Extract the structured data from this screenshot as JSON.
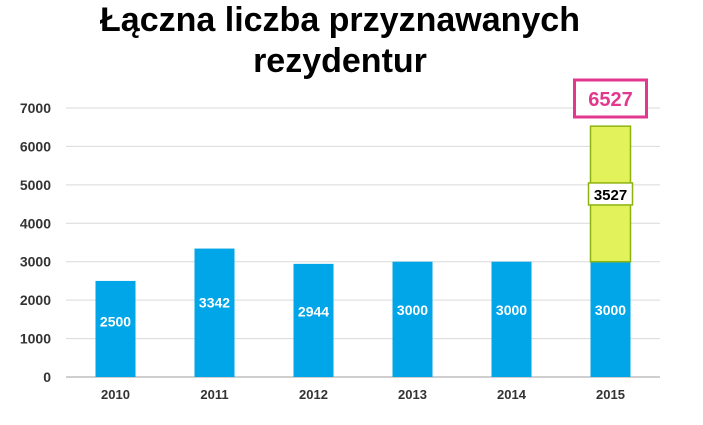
{
  "title": "Łączna liczba przyznawanych rezydentur",
  "colors": {
    "base": "#00A6E8",
    "extra": "#E2F25A",
    "extra_border": "#8DB312",
    "total_border": "#E2388E",
    "total_text": "#E2388E",
    "grid": "#D9D9D9"
  },
  "chart_data": {
    "type": "bar",
    "stacked": true,
    "categories": [
      "2010",
      "2011",
      "2012",
      "2013",
      "2014",
      "2015"
    ],
    "series": [
      {
        "values": [
          2500,
          3342,
          2944,
          3000,
          3000,
          3000
        ]
      },
      {
        "values": [
          0,
          0,
          0,
          0,
          0,
          3527
        ]
      }
    ],
    "data_labels": [
      "2500",
      "3342",
      "2944",
      "3000",
      "3000",
      "3000"
    ],
    "extra_label": "3527",
    "total_label": "6527",
    "y_ticks": [
      "0",
      "1000",
      "2000",
      "3000",
      "4000",
      "5000",
      "6000",
      "7000"
    ],
    "ylim": [
      0,
      7000
    ],
    "grid": true,
    "legend": "none"
  }
}
